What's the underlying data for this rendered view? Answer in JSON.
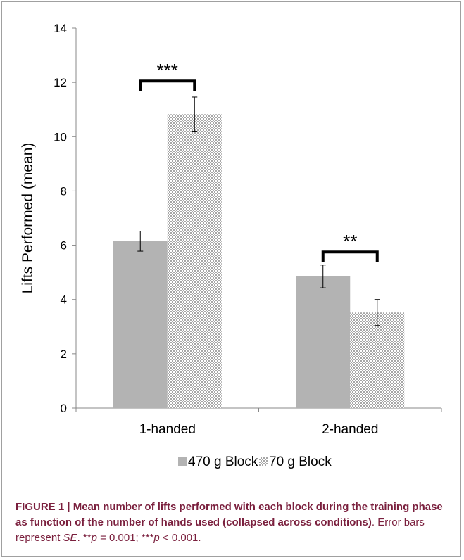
{
  "chart_data": {
    "type": "bar",
    "categories": [
      "1-handed",
      "2-handed"
    ],
    "series": [
      {
        "name": "470 g Block",
        "values": [
          6.15,
          4.85
        ],
        "errors": [
          0.37,
          0.42
        ],
        "color": "#b3b3b3",
        "pattern": "solid"
      },
      {
        "name": "70 g Block",
        "values": [
          10.83,
          3.52
        ],
        "errors": [
          0.63,
          0.48
        ],
        "color": "#bfbfbf",
        "pattern": "checker"
      }
    ],
    "ylabel": "Lifts Performed (mean)",
    "xlabel": "",
    "ylim": [
      0,
      14
    ],
    "yticks": [
      0,
      2,
      4,
      6,
      8,
      10,
      12,
      14
    ],
    "grid": false,
    "legend_position": "bottom",
    "annotations": [
      {
        "category": "1-handed",
        "label": "***",
        "bracket_y": 12.05
      },
      {
        "category": "2-handed",
        "label": "**",
        "bracket_y": 5.75
      }
    ]
  },
  "caption": {
    "figure_label": "FIGURE 1 | ",
    "title_bold": "Mean number of lifts performed with each block during the training phase as function of the number of hands used (collapsed across conditions)",
    "text_1": ". Error bars represent ",
    "se": "SE",
    "text_2": ". **",
    "p1": "p",
    "text_3": " = 0.001; ***",
    "p2": "p",
    "text_4": " < 0.001."
  }
}
